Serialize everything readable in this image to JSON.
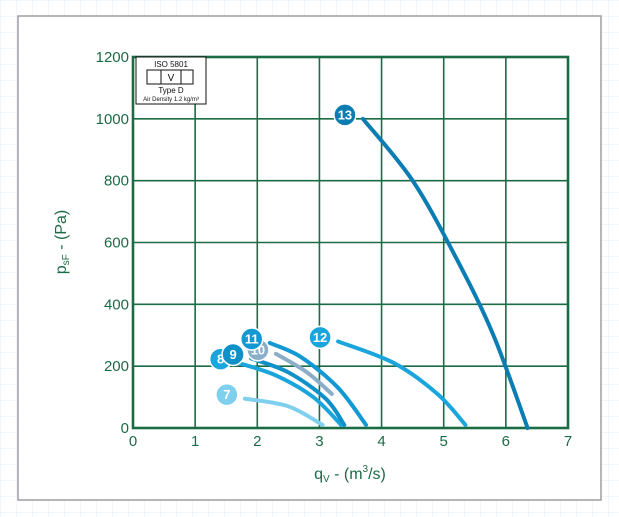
{
  "chart_data": {
    "type": "line",
    "xlabel_main": "q",
    "xlabel_sub": "V",
    "xlabel_rest_pre": " - (m",
    "xlabel_sup": "3",
    "xlabel_rest_post": "/s)",
    "ylabel_main": "p",
    "ylabel_sub": "sF",
    "ylabel_rest": " - (Pa)",
    "xlim": [
      0,
      7
    ],
    "ylim": [
      0,
      1200
    ],
    "xticks": [
      0,
      1,
      2,
      3,
      4,
      5,
      6,
      7
    ],
    "yticks": [
      0,
      200,
      400,
      600,
      800,
      1000,
      1200
    ],
    "grid": true,
    "legend_box": {
      "line1": "ISO 5801",
      "line2": "V",
      "line3": "Type D",
      "line4": "Air Density 1.2 kg/m³"
    },
    "series": [
      {
        "name": "7",
        "color": "#7fd0ee",
        "x": [
          1.8,
          2.5,
          3.05
        ],
        "y": [
          95,
          70,
          10
        ]
      },
      {
        "name": "8",
        "color": "#1aa5dc",
        "x": [
          1.7,
          2.3,
          2.9,
          3.35
        ],
        "y": [
          210,
          170,
          100,
          10
        ]
      },
      {
        "name": "9",
        "color": "#0e90c8",
        "x": [
          1.9,
          2.5,
          3.1,
          3.4
        ],
        "y": [
          225,
          180,
          95,
          10
        ]
      },
      {
        "name": "10",
        "color": "#8aaec8",
        "x": [
          2.3,
          2.8,
          3.2
        ],
        "y": [
          240,
          180,
          110
        ]
      },
      {
        "name": "11",
        "color": "#1298d2",
        "x": [
          2.2,
          2.7,
          3.3,
          3.75
        ],
        "y": [
          275,
          230,
          130,
          10
        ]
      },
      {
        "name": "12",
        "color": "#1aa5dc",
        "x": [
          3.3,
          4.2,
          4.9,
          5.35
        ],
        "y": [
          280,
          210,
          110,
          10
        ]
      },
      {
        "name": "13",
        "color": "#0b7db3",
        "x": [
          3.7,
          4.5,
          5.2,
          5.8,
          6.35
        ],
        "y": [
          1000,
          800,
          550,
          300,
          0
        ]
      }
    ]
  }
}
